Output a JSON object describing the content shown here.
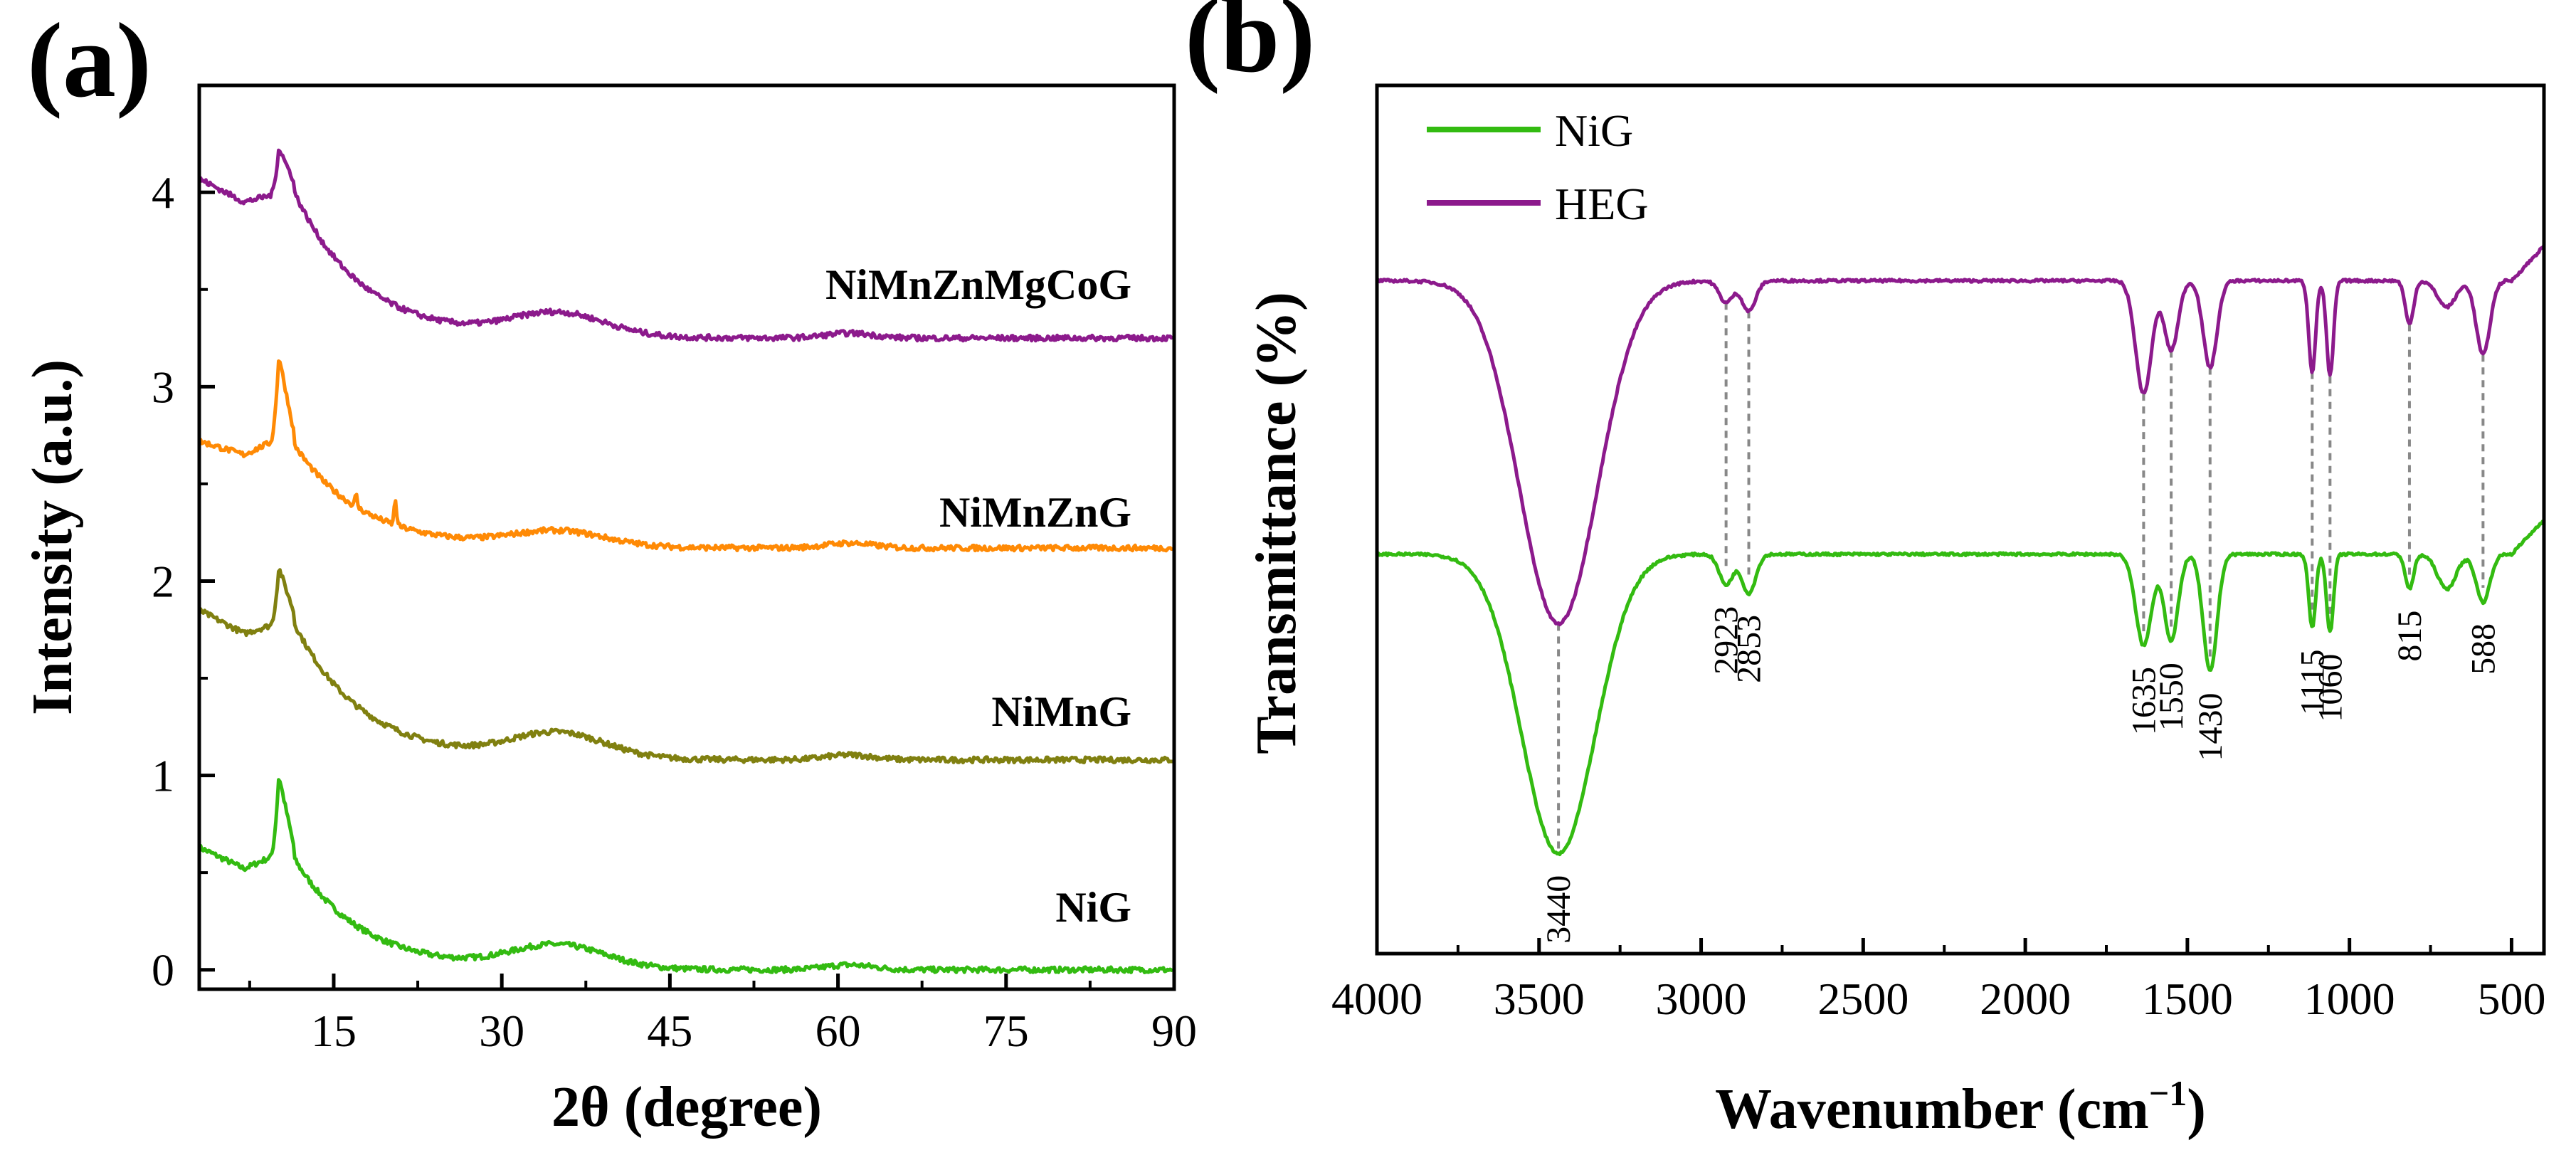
{
  "colors": {
    "NiG": "#33bb11",
    "NiMnG": "#808010",
    "NiMnZnG": "#ff8a05",
    "NiMnZnMgCoG": "#8c1a8c",
    "HEG": "#8c1a8c",
    "guide": "#888888"
  },
  "chart_data": [
    {
      "panel": "(a)",
      "type": "line",
      "xlabel": "2θ (degree)",
      "ylabel": "Intensity (a.u.)",
      "xlim": [
        3,
        90
      ],
      "ylim": [
        -0.1,
        4.55
      ],
      "xticks": [
        15,
        30,
        45,
        60,
        75,
        90
      ],
      "yticks": [
        0,
        1,
        2,
        3,
        4
      ],
      "series": [
        {
          "name": "NiG",
          "label": "NiG",
          "offset": 0.0,
          "baseline": 0.0,
          "start": 0.63,
          "dip": 0.52,
          "peak": 1.0,
          "hump": 0.12,
          "tail": 0.0,
          "spikes": []
        },
        {
          "name": "NiMnG",
          "label": "NiMnG",
          "offset": 1.0,
          "baseline": 1.08,
          "start": 1.85,
          "dip": 1.73,
          "peak": 2.07,
          "hump": 1.21,
          "tail": 1.08,
          "spikes": []
        },
        {
          "name": "NiMnZnG",
          "label": "NiMnZnG",
          "offset": 2.0,
          "baseline": 2.17,
          "start": 2.72,
          "dip": 2.65,
          "peak": 3.16,
          "hump": 2.25,
          "tail": 2.17,
          "spikes": [
            [
              17,
              2.33
            ],
            [
              20.5,
              2.4
            ]
          ]
        },
        {
          "name": "NiMnZnMgCoG",
          "label": "NiMnZnMgCoG",
          "offset": 3.0,
          "baseline": 3.25,
          "start": 4.07,
          "dip": 3.95,
          "peak": 4.23,
          "hump": 3.37,
          "tail": 3.25,
          "spikes": []
        }
      ]
    },
    {
      "panel": "(b)",
      "type": "line",
      "xlabel": "Wavenumber (cm",
      "xlabel_sup": "−1",
      "xlabel_close": ")",
      "ylabel": "Transmittance (%)",
      "xlim": [
        4000,
        400
      ],
      "ylim": [
        0,
        1
      ],
      "xticks": [
        4000,
        3500,
        3000,
        2500,
        2000,
        1500,
        1000,
        500
      ],
      "xtick_labels": [
        "4000",
        "3500",
        "3000",
        "2500",
        "2000",
        "1500",
        "1000",
        "500"
      ],
      "legend": [
        {
          "name": "NiG",
          "label": "NiG"
        },
        {
          "name": "HEG",
          "label": "HEG"
        }
      ],
      "series": [
        {
          "name": "HEG",
          "baseline": 0.775,
          "start": 0.775,
          "peaks": [
            {
              "pos": 3440,
              "width": 170,
              "depth": 0.395
            },
            {
              "pos": 2923,
              "width": 30,
              "depth": 0.025
            },
            {
              "pos": 2853,
              "width": 30,
              "depth": 0.035
            },
            {
              "pos": 1635,
              "width": 35,
              "depth": 0.13
            },
            {
              "pos": 1550,
              "width": 30,
              "depth": 0.08
            },
            {
              "pos": 1430,
              "width": 30,
              "depth": 0.1
            },
            {
              "pos": 1115,
              "width": 15,
              "depth": 0.105
            },
            {
              "pos": 1060,
              "width": 15,
              "depth": 0.11
            },
            {
              "pos": 815,
              "width": 18,
              "depth": 0.05
            },
            {
              "pos": 588,
              "width": 30,
              "depth": 0.085
            },
            {
              "pos": 700,
              "width": 40,
              "depth": 0.03
            }
          ]
        },
        {
          "name": "NiG",
          "baseline": 0.46,
          "start": 0.46,
          "peaks": [
            {
              "pos": 3440,
              "width": 160,
              "depth": 0.345
            },
            {
              "pos": 2923,
              "width": 30,
              "depth": 0.035
            },
            {
              "pos": 2853,
              "width": 30,
              "depth": 0.045
            },
            {
              "pos": 1635,
              "width": 35,
              "depth": 0.105
            },
            {
              "pos": 1550,
              "width": 30,
              "depth": 0.1
            },
            {
              "pos": 1430,
              "width": 30,
              "depth": 0.135
            },
            {
              "pos": 1115,
              "width": 15,
              "depth": 0.085
            },
            {
              "pos": 1060,
              "width": 15,
              "depth": 0.09
            },
            {
              "pos": 815,
              "width": 18,
              "depth": 0.04
            },
            {
              "pos": 588,
              "width": 30,
              "depth": 0.055
            },
            {
              "pos": 700,
              "width": 40,
              "depth": 0.04
            }
          ]
        }
      ],
      "peak_labels": [
        {
          "pos": 3440,
          "text": "3440",
          "place": "below"
        },
        {
          "pos": 2923,
          "text": "2923",
          "place": "above"
        },
        {
          "pos": 2853,
          "text": "2853",
          "place": "above"
        },
        {
          "pos": 1635,
          "text": "1635",
          "place": "above"
        },
        {
          "pos": 1550,
          "text": "1550",
          "place": "above"
        },
        {
          "pos": 1430,
          "text": "1430",
          "place": "above"
        },
        {
          "pos": 1115,
          "text": "1115",
          "place": "above"
        },
        {
          "pos": 1060,
          "text": "1060",
          "place": "above"
        },
        {
          "pos": 815,
          "text": "815",
          "place": "above"
        },
        {
          "pos": 588,
          "text": "588",
          "place": "above"
        }
      ]
    }
  ]
}
